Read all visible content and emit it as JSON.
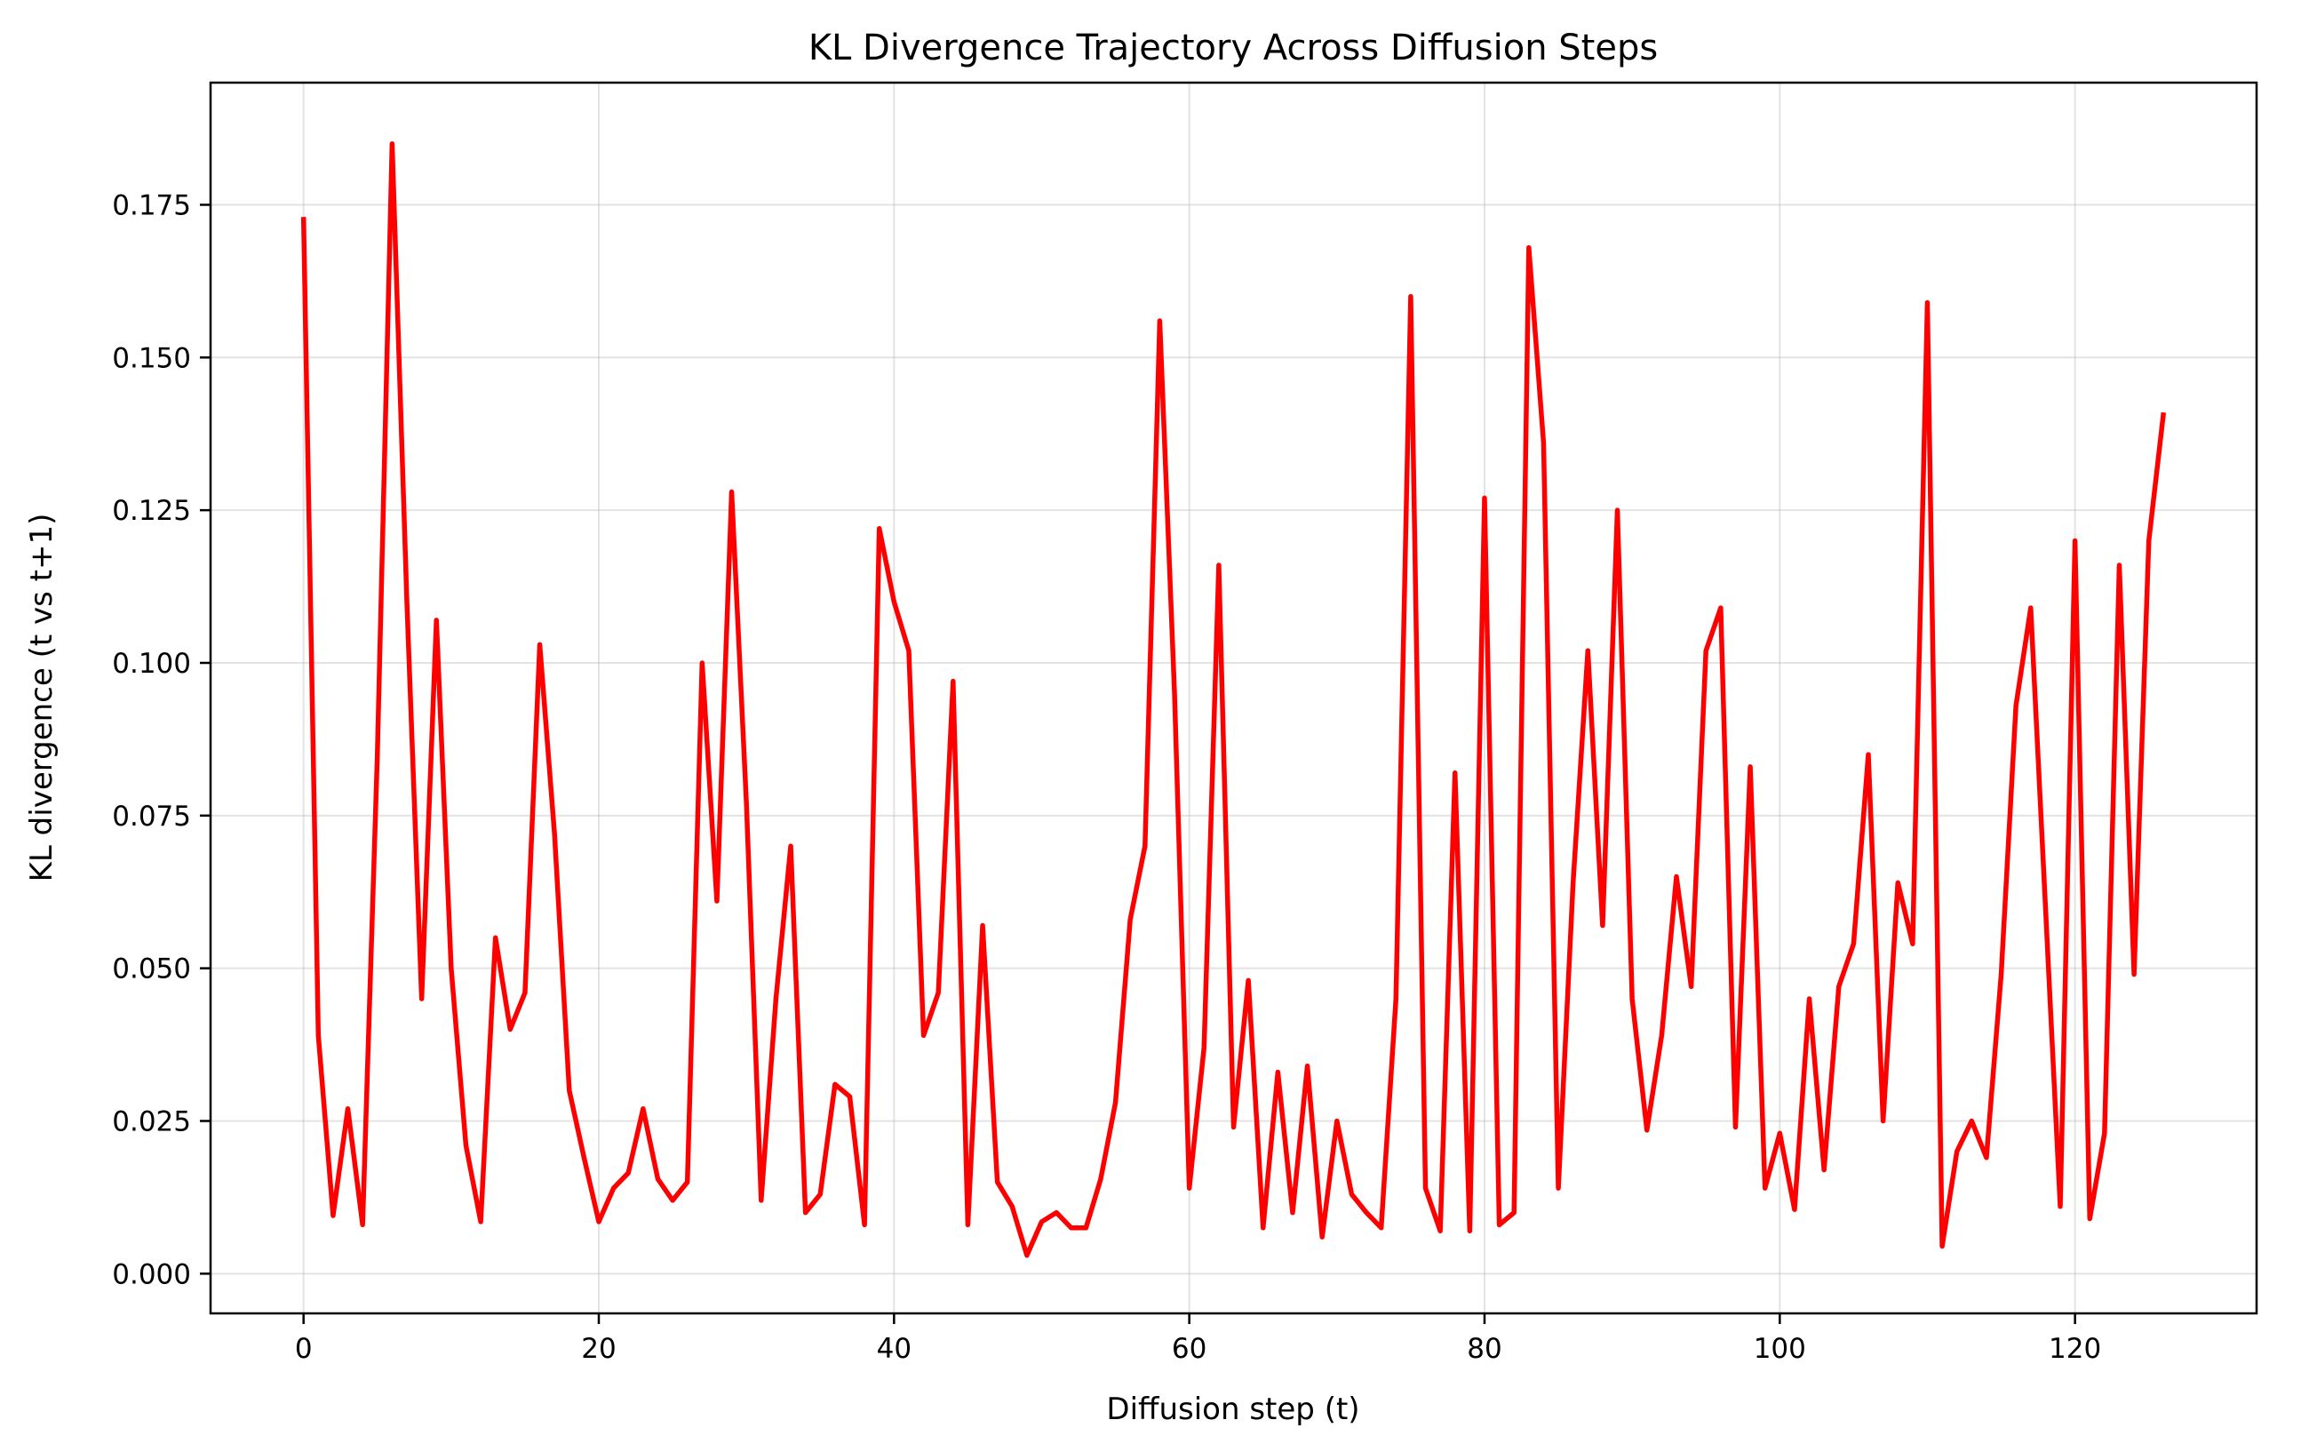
{
  "chart_data": {
    "type": "line",
    "title": "KL Divergence Trajectory Across Diffusion Steps",
    "xlabel": "Diffusion step (t)",
    "ylabel": "KL divergence (t vs t+1)",
    "xlim": [
      -6.3,
      132.3
    ],
    "ylim": [
      -0.0065,
      0.195
    ],
    "xticks": [
      0,
      20,
      40,
      60,
      80,
      100,
      120
    ],
    "xtick_labels": [
      "0",
      "20",
      "40",
      "60",
      "80",
      "100",
      "120"
    ],
    "yticks": [
      0.0,
      0.025,
      0.05,
      0.075,
      0.1,
      0.125,
      0.15,
      0.175
    ],
    "ytick_labels": [
      "0.000",
      "0.025",
      "0.050",
      "0.075",
      "0.100",
      "0.125",
      "0.150",
      "0.175"
    ],
    "grid": true,
    "color": "#ff0000",
    "x_start": 0,
    "x_step": 1,
    "values": [
      0.173,
      0.039,
      0.0095,
      0.027,
      0.008,
      0.085,
      0.185,
      0.11,
      0.045,
      0.107,
      0.05,
      0.021,
      0.0085,
      0.055,
      0.04,
      0.046,
      0.103,
      0.072,
      0.03,
      0.019,
      0.0085,
      0.014,
      0.0165,
      0.027,
      0.0155,
      0.012,
      0.015,
      0.1,
      0.061,
      0.128,
      0.077,
      0.012,
      0.045,
      0.07,
      0.01,
      0.013,
      0.031,
      0.029,
      0.008,
      0.122,
      0.11,
      0.102,
      0.039,
      0.046,
      0.097,
      0.008,
      0.057,
      0.015,
      0.011,
      0.003,
      0.0085,
      0.01,
      0.0075,
      0.0075,
      0.0155,
      0.028,
      0.058,
      0.07,
      0.156,
      0.095,
      0.014,
      0.037,
      0.116,
      0.024,
      0.048,
      0.0075,
      0.033,
      0.01,
      0.034,
      0.006,
      0.025,
      0.013,
      0.01,
      0.0075,
      0.045,
      0.16,
      0.014,
      0.007,
      0.082,
      0.007,
      0.127,
      0.008,
      0.01,
      0.168,
      0.136,
      0.014,
      0.064,
      0.102,
      0.057,
      0.125,
      0.045,
      0.0235,
      0.039,
      0.065,
      0.047,
      0.102,
      0.109,
      0.024,
      0.083,
      0.014,
      0.023,
      0.0105,
      0.045,
      0.017,
      0.047,
      0.054,
      0.085,
      0.025,
      0.064,
      0.054,
      0.159,
      0.0045,
      0.02,
      0.025,
      0.019,
      0.049,
      0.093,
      0.109,
      0.06,
      0.011,
      0.12,
      0.009,
      0.023,
      0.116,
      0.049,
      0.12,
      0.141
    ]
  }
}
